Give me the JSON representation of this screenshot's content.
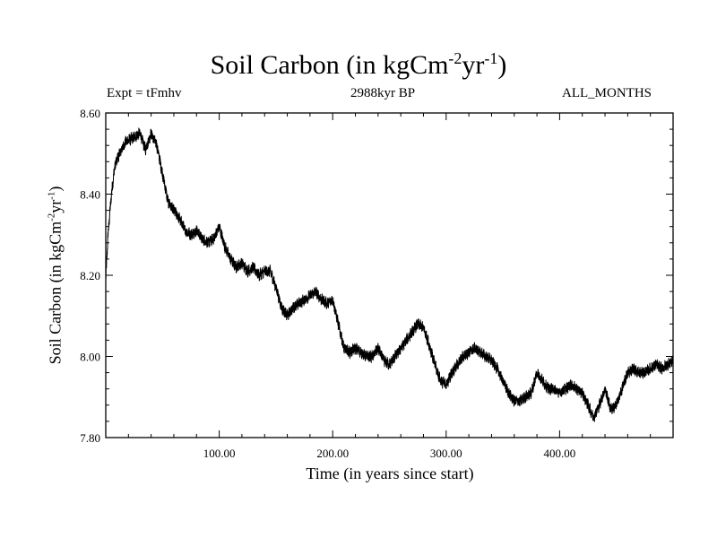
{
  "header": {
    "title_main": "Soil Carbon (in kgCm",
    "title_sup1": "-2",
    "title_mid": "yr",
    "title_sup2": "-1",
    "title_end": ")",
    "experiment": "Expt = tFmhv",
    "period": "2988kyr BP",
    "months": "ALL_MONTHS"
  },
  "axes": {
    "ylabel_main": "Soil Carbon (in kgCm",
    "ylabel_sup1": "-2",
    "ylabel_mid": "yr",
    "ylabel_sup2": "-1",
    "ylabel_end": ")",
    "xlabel": "Time (in years since start)"
  },
  "chart_data": {
    "type": "line",
    "title": "Soil Carbon (in kgCm-2yr-1)",
    "xlabel": "Time (in years since start)",
    "ylabel": "Soil Carbon (in kgCm-2yr-1)",
    "xlim": [
      0,
      500
    ],
    "ylim": [
      7.8,
      8.6
    ],
    "xticks": [
      100,
      200,
      300,
      400
    ],
    "xtick_labels": [
      "100.00",
      "200.00",
      "300.00",
      "400.00"
    ],
    "yticks": [
      7.8,
      8.0,
      8.2,
      8.4,
      8.6
    ],
    "ytick_labels": [
      "7.80",
      "8.00",
      "8.20",
      "8.40",
      "8.60"
    ],
    "noise_amplitude": 0.012,
    "series": [
      {
        "name": "Soil Carbon",
        "color": "#000000",
        "x": [
          0,
          2,
          5,
          8,
          12,
          18,
          25,
          30,
          35,
          40,
          45,
          50,
          55,
          60,
          65,
          70,
          75,
          80,
          85,
          90,
          95,
          100,
          105,
          110,
          115,
          120,
          125,
          130,
          135,
          140,
          145,
          150,
          155,
          160,
          165,
          170,
          175,
          180,
          185,
          190,
          195,
          200,
          205,
          210,
          215,
          220,
          225,
          230,
          235,
          240,
          245,
          250,
          255,
          260,
          265,
          270,
          275,
          280,
          285,
          290,
          295,
          300,
          305,
          310,
          315,
          320,
          325,
          330,
          335,
          340,
          345,
          350,
          355,
          360,
          365,
          370,
          375,
          380,
          385,
          390,
          395,
          400,
          405,
          410,
          415,
          420,
          425,
          430,
          435,
          440,
          445,
          450,
          455,
          460,
          465,
          470,
          475,
          480,
          485,
          490,
          495,
          500
        ],
        "values": [
          8.19,
          8.3,
          8.4,
          8.47,
          8.5,
          8.53,
          8.54,
          8.55,
          8.51,
          8.55,
          8.52,
          8.45,
          8.38,
          8.36,
          8.34,
          8.31,
          8.3,
          8.31,
          8.29,
          8.28,
          8.29,
          8.32,
          8.27,
          8.24,
          8.22,
          8.23,
          8.21,
          8.22,
          8.2,
          8.21,
          8.21,
          8.17,
          8.12,
          8.1,
          8.12,
          8.13,
          8.14,
          8.15,
          8.16,
          8.14,
          8.13,
          8.14,
          8.08,
          8.02,
          8.01,
          8.02,
          8.01,
          8.0,
          8.0,
          8.02,
          7.99,
          7.98,
          8.0,
          8.02,
          8.04,
          8.06,
          8.08,
          8.07,
          8.03,
          7.98,
          7.94,
          7.93,
          7.96,
          7.98,
          8.0,
          8.01,
          8.02,
          8.01,
          8.0,
          7.99,
          7.97,
          7.94,
          7.91,
          7.89,
          7.89,
          7.9,
          7.91,
          7.96,
          7.94,
          7.92,
          7.92,
          7.91,
          7.92,
          7.93,
          7.92,
          7.91,
          7.88,
          7.85,
          7.88,
          7.92,
          7.87,
          7.88,
          7.92,
          7.96,
          7.97,
          7.96,
          7.96,
          7.97,
          7.98,
          7.97,
          7.98,
          7.99
        ]
      }
    ]
  }
}
